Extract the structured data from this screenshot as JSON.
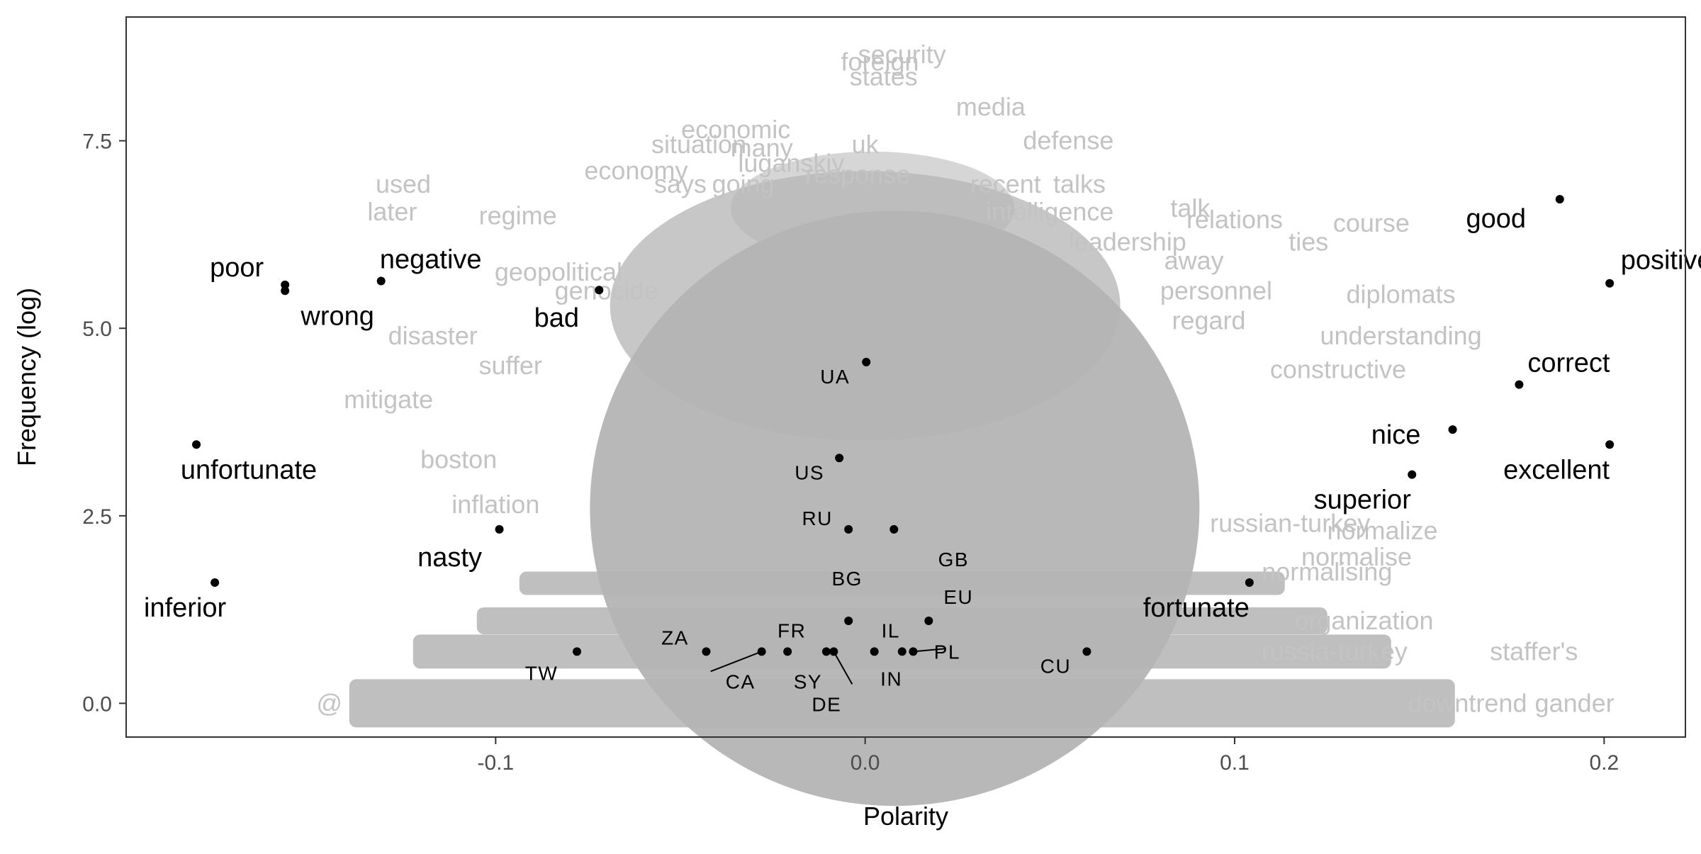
{
  "chart_data": {
    "type": "scatter",
    "title": "",
    "xlabel": "Polarity",
    "ylabel": "Frequency (log)",
    "xlim": [
      -0.2,
      0.222
    ],
    "ylim": [
      -0.45,
      9.15
    ],
    "x_ticks": [
      -0.1,
      0.0,
      0.1,
      0.2
    ],
    "x_tick_labels": [
      "-0.1",
      "0.0",
      "0.1",
      "0.2"
    ],
    "y_ticks": [
      0.0,
      2.5,
      5.0,
      7.5
    ],
    "y_tick_labels": [
      "0.0",
      "2.5",
      "5.0",
      "7.5"
    ],
    "grid": false,
    "legend": "none",
    "colors": {
      "background_word": "#c3c3c3",
      "background_blob": "#b4b4b4",
      "highlight_word": "#000000",
      "point": "#000000",
      "axis": "#333333"
    },
    "highlighted_words": [
      {
        "label": "good",
        "x": 0.188,
        "y": 6.72
      },
      {
        "label": "positive",
        "x": 0.2015,
        "y": 5.6
      },
      {
        "label": "correct",
        "x": 0.177,
        "y": 4.25
      },
      {
        "label": "nice",
        "x": 0.159,
        "y": 3.65
      },
      {
        "label": "excellent",
        "x": 0.2015,
        "y": 3.45
      },
      {
        "label": "superior",
        "x": 0.148,
        "y": 3.05
      },
      {
        "label": "fortunate",
        "x": 0.104,
        "y": 1.61
      },
      {
        "label": "poor",
        "x": -0.157,
        "y": 5.58
      },
      {
        "label": "wrong",
        "x": -0.157,
        "y": 5.5
      },
      {
        "label": "negative",
        "x": -0.131,
        "y": 5.63
      },
      {
        "label": "bad",
        "x": -0.072,
        "y": 5.51
      },
      {
        "label": "unfortunate",
        "x": -0.181,
        "y": 3.45
      },
      {
        "label": "nasty",
        "x": -0.099,
        "y": 2.32
      },
      {
        "label": "inferior",
        "x": -0.176,
        "y": 1.61
      }
    ],
    "country_points": [
      {
        "label": "UA",
        "x": 0.0003,
        "y": 4.55
      },
      {
        "label": "US",
        "x": -0.007,
        "y": 3.27
      },
      {
        "label": "RU",
        "x": -0.0045,
        "y": 2.32
      },
      {
        "label": "GB",
        "x": 0.0078,
        "y": 2.32
      },
      {
        "label": "BG",
        "x": -0.0045,
        "y": 1.1
      },
      {
        "label": "EU",
        "x": 0.0172,
        "y": 1.1
      },
      {
        "label": "IL",
        "x": 0.01,
        "y": 0.69
      },
      {
        "label": "PL",
        "x": 0.013,
        "y": 0.69
      },
      {
        "label": "IN",
        "x": 0.0025,
        "y": 0.69
      },
      {
        "label": "DE",
        "x": -0.0085,
        "y": 0.69
      },
      {
        "label": "SY",
        "x": -0.0105,
        "y": 0.69
      },
      {
        "label": "FR",
        "x": -0.021,
        "y": 0.69
      },
      {
        "label": "CA",
        "x": -0.028,
        "y": 0.69
      },
      {
        "label": "ZA",
        "x": -0.043,
        "y": 0.69
      },
      {
        "label": "TW",
        "x": -0.078,
        "y": 0.69
      },
      {
        "label": "CU",
        "x": 0.06,
        "y": 0.69
      }
    ],
    "background_words": [
      {
        "label": "security",
        "x": 0.01,
        "y": 8.65
      },
      {
        "label": "foreign",
        "x": 0.004,
        "y": 8.55
      },
      {
        "label": "states",
        "x": 0.005,
        "y": 8.35
      },
      {
        "label": "media",
        "x": 0.034,
        "y": 7.95
      },
      {
        "label": "economic",
        "x": -0.035,
        "y": 7.65
      },
      {
        "label": "defense",
        "x": 0.055,
        "y": 7.5
      },
      {
        "label": "situation",
        "x": -0.045,
        "y": 7.45
      },
      {
        "label": "uk",
        "x": 0.0,
        "y": 7.45
      },
      {
        "label": "many",
        "x": -0.028,
        "y": 7.4
      },
      {
        "label": "luganskiy",
        "x": -0.02,
        "y": 7.2
      },
      {
        "label": "economy",
        "x": -0.062,
        "y": 7.1
      },
      {
        "label": "says",
        "x": -0.05,
        "y": 6.92
      },
      {
        "label": "going",
        "x": -0.033,
        "y": 6.92
      },
      {
        "label": "response",
        "x": -0.002,
        "y": 7.05
      },
      {
        "label": "recent",
        "x": 0.038,
        "y": 6.92
      },
      {
        "label": "talks",
        "x": 0.058,
        "y": 6.92
      },
      {
        "label": "used",
        "x": -0.125,
        "y": 6.92
      },
      {
        "label": "later",
        "x": -0.128,
        "y": 6.55
      },
      {
        "label": "regime",
        "x": -0.094,
        "y": 6.5
      },
      {
        "label": "intelligence",
        "x": 0.05,
        "y": 6.55
      },
      {
        "label": "talk",
        "x": 0.088,
        "y": 6.6
      },
      {
        "label": "relations",
        "x": 0.1,
        "y": 6.45
      },
      {
        "label": "course",
        "x": 0.137,
        "y": 6.4
      },
      {
        "label": "leadership",
        "x": 0.071,
        "y": 6.15
      },
      {
        "label": "ties",
        "x": 0.12,
        "y": 6.15
      },
      {
        "label": "away",
        "x": 0.089,
        "y": 5.9
      },
      {
        "label": "personnel",
        "x": 0.095,
        "y": 5.5
      },
      {
        "label": "diplomats",
        "x": 0.145,
        "y": 5.45
      },
      {
        "label": "regard",
        "x": 0.093,
        "y": 5.1
      },
      {
        "label": "understanding",
        "x": 0.145,
        "y": 4.9
      },
      {
        "label": "constructive",
        "x": 0.128,
        "y": 4.45
      },
      {
        "label": "geopolitical",
        "x": -0.083,
        "y": 5.75
      },
      {
        "label": "genocide",
        "x": -0.07,
        "y": 5.5
      },
      {
        "label": "disaster",
        "x": -0.117,
        "y": 4.9
      },
      {
        "label": "suffer",
        "x": -0.096,
        "y": 4.5
      },
      {
        "label": "mitigate",
        "x": -0.129,
        "y": 4.05
      },
      {
        "label": "boston",
        "x": -0.11,
        "y": 3.25
      },
      {
        "label": "inflation",
        "x": -0.1,
        "y": 2.65
      },
      {
        "label": "russian-turkey",
        "x": 0.115,
        "y": 2.4
      },
      {
        "label": "normalize",
        "x": 0.14,
        "y": 2.3
      },
      {
        "label": "normalise",
        "x": 0.133,
        "y": 1.95
      },
      {
        "label": "normalising",
        "x": 0.125,
        "y": 1.75
      },
      {
        "label": "organization",
        "x": 0.135,
        "y": 1.1
      },
      {
        "label": "russia-turkey",
        "x": 0.127,
        "y": 0.69
      },
      {
        "label": "staffer's",
        "x": 0.181,
        "y": 0.69
      },
      {
        "label": "downtrend",
        "x": 0.163,
        "y": 0.0
      },
      {
        "label": "gander",
        "x": 0.192,
        "y": 0.0
      },
      {
        "label": "@",
        "x": -0.145,
        "y": 0.0
      }
    ]
  }
}
